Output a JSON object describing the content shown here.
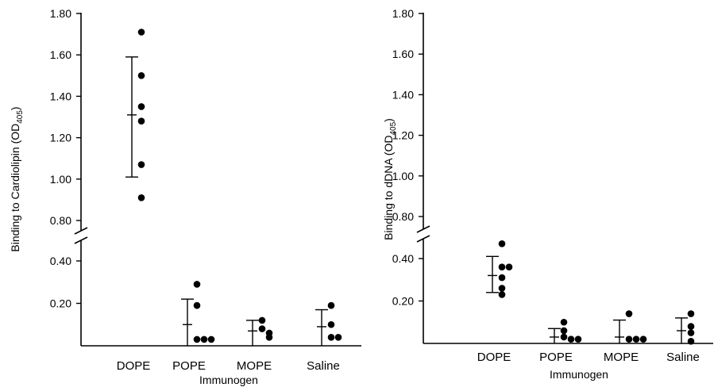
{
  "chart_data": [
    {
      "type": "scatter",
      "ylabel_main": "Binding to Cardiolipin (OD",
      "ylabel_sub": "405",
      "ylabel_close": ")",
      "xlabel": "Immunogen",
      "axis_break": true,
      "upper_ylim": [
        0.8,
        1.8
      ],
      "lower_ylim": [
        0,
        0.4
      ],
      "yticks": [
        {
          "value": 1.8,
          "label": "1.80"
        },
        {
          "value": 1.6,
          "label": "1.60"
        },
        {
          "value": 1.4,
          "label": "1.40"
        },
        {
          "value": 1.2,
          "label": "1.20"
        },
        {
          "value": 1.0,
          "label": "1.00"
        },
        {
          "value": 0.8,
          "label": "0.80"
        },
        {
          "value": 0.4,
          "label": "0.40"
        },
        {
          "value": 0.2,
          "label": "0.20"
        }
      ],
      "categories": [
        "DOPE",
        "POPE",
        "MOPE",
        "Saline"
      ],
      "groups": [
        {
          "category": "DOPE",
          "mean": 1.31,
          "sd_high": 1.59,
          "sd_low": 1.01,
          "points": [
            1.71,
            1.5,
            1.35,
            1.28,
            1.07,
            0.91
          ]
        },
        {
          "category": "POPE",
          "mean": 0.1,
          "sd_high": 0.22,
          "sd_low": 0.0,
          "points": [
            0.29,
            0.19,
            0.03,
            0.03,
            0.03
          ]
        },
        {
          "category": "MOPE",
          "mean": 0.07,
          "sd_high": 0.12,
          "sd_low": 0.0,
          "points": [
            0.12,
            0.08,
            0.06,
            0.04
          ]
        },
        {
          "category": "Saline",
          "mean": 0.09,
          "sd_high": 0.17,
          "sd_low": 0.0,
          "points": [
            0.19,
            0.1,
            0.04,
            0.04
          ]
        }
      ]
    },
    {
      "type": "scatter",
      "ylabel_main": "Binding to dDNA (OD",
      "ylabel_sub": "405",
      "ylabel_close": ")",
      "xlabel": "Immunogen",
      "axis_break": true,
      "upper_ylim": [
        0.8,
        1.8
      ],
      "lower_ylim": [
        0,
        0.4
      ],
      "yticks": [
        {
          "value": 1.8,
          "label": "1.80"
        },
        {
          "value": 1.6,
          "label": "1.60"
        },
        {
          "value": 1.4,
          "label": "1.40"
        },
        {
          "value": 1.2,
          "label": "1.20"
        },
        {
          "value": 1.0,
          "label": "1.00"
        },
        {
          "value": 0.8,
          "label": "0.80"
        },
        {
          "value": 0.4,
          "label": "0.40"
        },
        {
          "value": 0.2,
          "label": "0.20"
        }
      ],
      "categories": [
        "DOPE",
        "POPE",
        "MOPE",
        "Saline"
      ],
      "groups": [
        {
          "category": "DOPE",
          "mean": 0.32,
          "sd_high": 0.41,
          "sd_low": 0.24,
          "points": [
            0.47,
            0.36,
            0.36,
            0.31,
            0.26,
            0.23
          ]
        },
        {
          "category": "POPE",
          "mean": 0.03,
          "sd_high": 0.07,
          "sd_low": 0.0,
          "points": [
            0.1,
            0.06,
            0.03,
            0.02,
            0.02
          ]
        },
        {
          "category": "MOPE",
          "mean": 0.03,
          "sd_high": 0.11,
          "sd_low": 0.0,
          "points": [
            0.14,
            0.02,
            0.02,
            0.02
          ]
        },
        {
          "category": "Saline",
          "mean": 0.06,
          "sd_high": 0.12,
          "sd_low": 0.0,
          "points": [
            0.14,
            0.08,
            0.05,
            0.01
          ]
        }
      ]
    }
  ]
}
